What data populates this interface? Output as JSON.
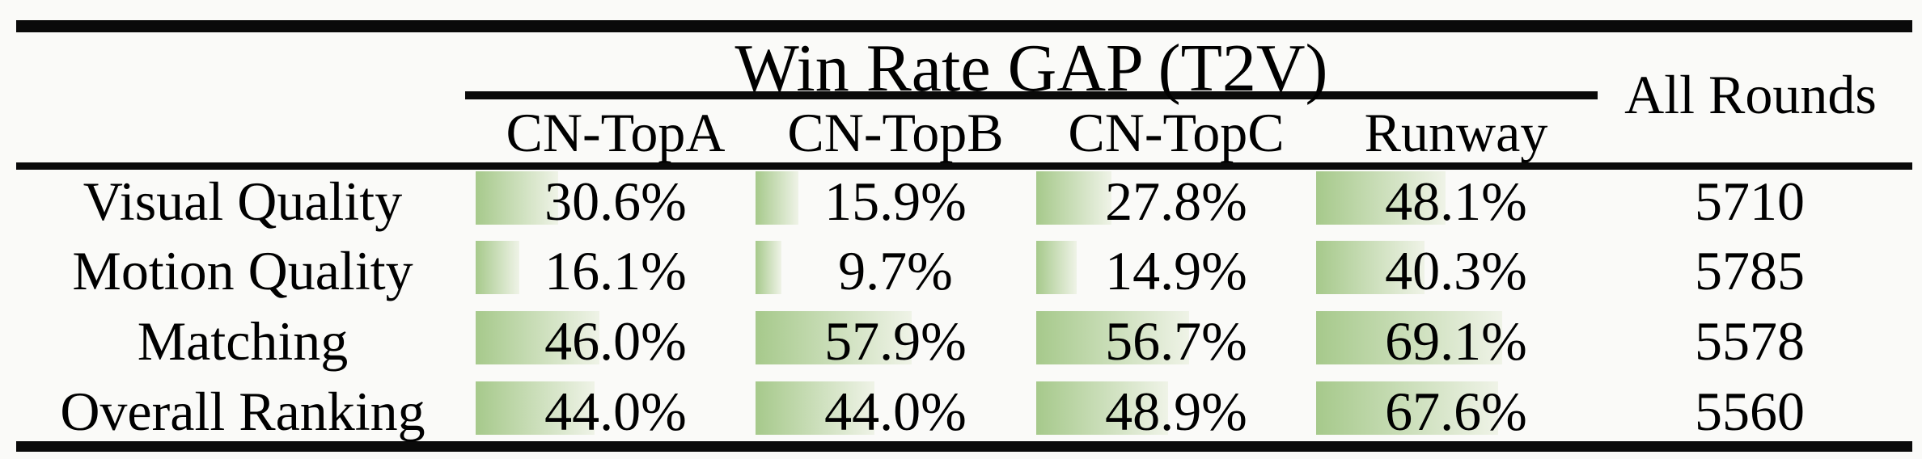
{
  "table": {
    "title": "Win Rate GAP (T2V)",
    "all_rounds_header": "All Rounds",
    "gap_columns": [
      "CN-TopA",
      "CN-TopB",
      "CN-TopC",
      "Runway"
    ],
    "rows": [
      {
        "label": "Visual Quality",
        "display": [
          "30.6%",
          "15.9%",
          "27.8%",
          "48.1%"
        ],
        "bar_pct": [
          30.6,
          15.9,
          27.8,
          48.1
        ],
        "all_rounds": "5710"
      },
      {
        "label": "Motion Quality",
        "display": [
          "16.1%",
          "9.7%",
          "14.9%",
          "40.3%"
        ],
        "bar_pct": [
          16.1,
          9.7,
          14.9,
          40.3
        ],
        "all_rounds": "5785"
      },
      {
        "label": "Matching",
        "display": [
          "46.0%",
          "57.9%",
          "56.7%",
          "69.1%"
        ],
        "bar_pct": [
          46.0,
          57.9,
          56.7,
          69.1
        ],
        "all_rounds": "5578"
      },
      {
        "label": "Overall Ranking",
        "display": [
          "44.0%",
          "44.0%",
          "48.9%",
          "67.6%"
        ],
        "bar_pct": [
          44.0,
          44.0,
          48.9,
          67.6
        ],
        "all_rounds": "5560"
      }
    ],
    "bar_colors": {
      "start": "#a6c98b",
      "end": "#eff3e7"
    }
  },
  "chart_data": {
    "type": "table",
    "title": "Win Rate GAP (T2V)",
    "row_header": [
      "Visual Quality",
      "Motion Quality",
      "Matching",
      "Overall Ranking"
    ],
    "columns": [
      "CN-TopA",
      "CN-TopB",
      "CN-TopC",
      "Runway",
      "All Rounds"
    ],
    "series": [
      {
        "name": "Visual Quality",
        "values": [
          30.6,
          15.9,
          27.8,
          48.1
        ],
        "all_rounds": 5710
      },
      {
        "name": "Motion Quality",
        "values": [
          16.1,
          9.7,
          14.9,
          40.3
        ],
        "all_rounds": 5785
      },
      {
        "name": "Matching",
        "values": [
          46.0,
          57.9,
          56.7,
          69.1
        ],
        "all_rounds": 5578
      },
      {
        "name": "Overall Ranking",
        "values": [
          44.0,
          44.0,
          48.9,
          67.6
        ],
        "all_rounds": 5560
      }
    ],
    "value_unit": "%",
    "databar_scale": "bar width proportional to percent, green-to-white gradient"
  }
}
